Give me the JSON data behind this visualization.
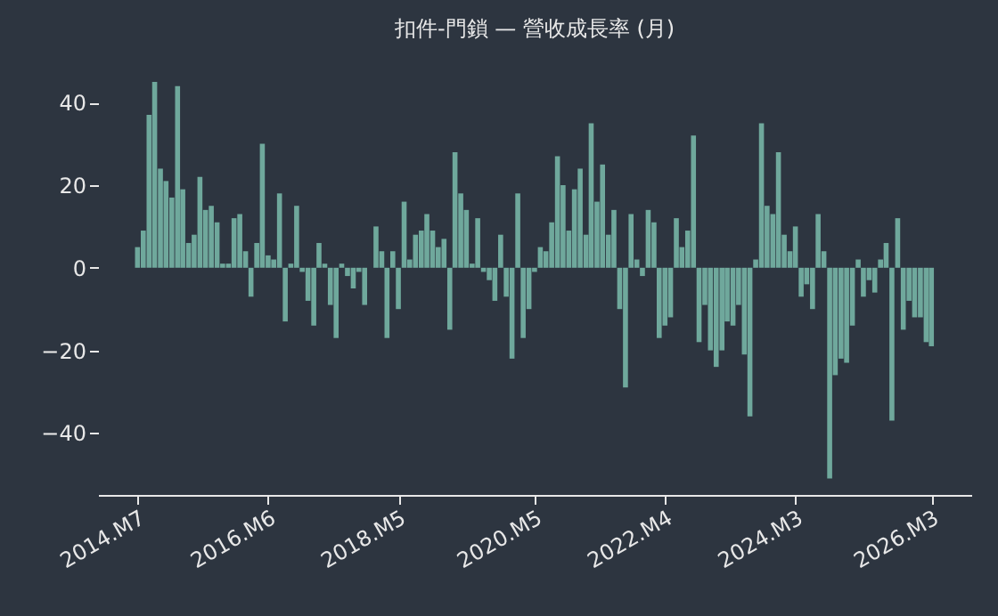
{
  "chart_data": {
    "type": "bar",
    "title": "扣件-門鎖 — 營收成長率 (月)",
    "x": [
      "2014-07",
      "2014-08",
      "2014-09",
      "2014-10",
      "2014-11",
      "2014-12",
      "2015-01",
      "2015-02",
      "2015-03",
      "2015-04",
      "2015-05",
      "2015-06",
      "2015-07",
      "2015-08",
      "2015-09",
      "2015-10",
      "2015-11",
      "2015-12",
      "2016-01",
      "2016-02",
      "2016-03",
      "2016-04",
      "2016-05",
      "2016-06",
      "2016-07",
      "2016-08",
      "2016-09",
      "2016-10",
      "2016-11",
      "2016-12",
      "2017-01",
      "2017-02",
      "2017-03",
      "2017-04",
      "2017-05",
      "2017-06",
      "2017-07",
      "2017-08",
      "2017-09",
      "2017-10",
      "2017-11",
      "2017-12",
      "2018-01",
      "2018-02",
      "2018-03",
      "2018-04",
      "2018-05",
      "2018-06",
      "2018-07",
      "2018-08",
      "2018-09",
      "2018-10",
      "2018-11",
      "2018-12",
      "2019-01",
      "2019-02",
      "2019-03",
      "2019-04",
      "2019-05",
      "2019-06",
      "2019-07",
      "2019-08",
      "2019-09",
      "2019-10",
      "2019-11",
      "2019-12",
      "2020-01",
      "2020-02",
      "2020-03",
      "2020-04",
      "2020-05",
      "2020-06",
      "2020-07",
      "2020-08",
      "2020-09",
      "2020-10",
      "2020-11",
      "2020-12",
      "2021-01",
      "2021-02",
      "2021-03",
      "2021-04",
      "2021-05",
      "2021-06",
      "2021-07",
      "2021-08",
      "2021-09",
      "2021-10",
      "2021-11",
      "2021-12",
      "2022-01",
      "2022-02",
      "2022-03",
      "2022-04",
      "2022-05",
      "2022-06",
      "2022-07",
      "2022-08",
      "2022-09",
      "2022-10",
      "2022-11",
      "2022-12",
      "2023-01",
      "2023-02",
      "2023-03",
      "2023-04",
      "2023-05",
      "2023-06",
      "2023-07",
      "2023-08",
      "2023-09",
      "2023-10",
      "2023-11",
      "2023-12",
      "2024-01",
      "2024-02",
      "2024-03",
      "2024-04",
      "2024-05",
      "2024-06",
      "2024-07",
      "2024-08",
      "2024-09",
      "2024-10",
      "2024-11",
      "2024-12",
      "2025-01",
      "2025-02",
      "2025-03",
      "2025-04",
      "2025-05",
      "2025-06",
      "2025-07",
      "2025-08",
      "2025-09",
      "2025-10",
      "2025-11",
      "2025-12",
      "2026-01",
      "2026-02",
      "2026-03"
    ],
    "values": [
      5,
      9,
      37,
      45,
      24,
      21,
      17,
      44,
      19,
      6,
      8,
      22,
      14,
      15,
      11,
      1,
      1,
      12,
      13,
      4,
      -7,
      6,
      30,
      3,
      2,
      18,
      -13,
      1,
      15,
      -1,
      -8,
      -14,
      6,
      1,
      -9,
      -17,
      1,
      -2,
      -5,
      -1,
      -9,
      0,
      10,
      4,
      -17,
      4,
      -10,
      16,
      2,
      8,
      9,
      13,
      9,
      5,
      7,
      -15,
      28,
      18,
      14,
      1,
      12,
      -1,
      -3,
      -8,
      8,
      -7,
      -22,
      18,
      -17,
      -10,
      -1,
      5,
      4,
      11,
      27,
      20,
      9,
      19,
      24,
      8,
      35,
      16,
      25,
      8,
      14,
      -10,
      -29,
      13,
      2,
      -2,
      14,
      11,
      -17,
      -14,
      -12,
      12,
      5,
      9,
      32,
      -18,
      -9,
      -20,
      -24,
      -20,
      -13,
      -14,
      -9,
      -21,
      -36,
      2,
      35,
      15,
      13,
      28,
      8,
      4,
      10,
      -7,
      -4,
      -10,
      13,
      4,
      -51,
      -26,
      -22,
      -23,
      -14,
      2,
      -7,
      -3,
      -6,
      2,
      6,
      -37,
      12,
      -15,
      -8,
      -12,
      -12,
      -18,
      -19
    ],
    "xlim": [
      "2013-12",
      "2026-10"
    ],
    "xticks": [
      {
        "value": "2014-07",
        "label": "2014.M7"
      },
      {
        "value": "2016-06",
        "label": "2016.M6"
      },
      {
        "value": "2018-05",
        "label": "2018.M5"
      },
      {
        "value": "2020-05",
        "label": "2020.M5"
      },
      {
        "value": "2022-04",
        "label": "2022.M4"
      },
      {
        "value": "2024-03",
        "label": "2024.M3"
      },
      {
        "value": "2026-03",
        "label": "2026.M3"
      }
    ],
    "color": "#6fa89c",
    "ylim": [
      -55,
      45
    ],
    "yticks": [
      -40,
      -20,
      0,
      20,
      40
    ],
    "grid": false
  }
}
